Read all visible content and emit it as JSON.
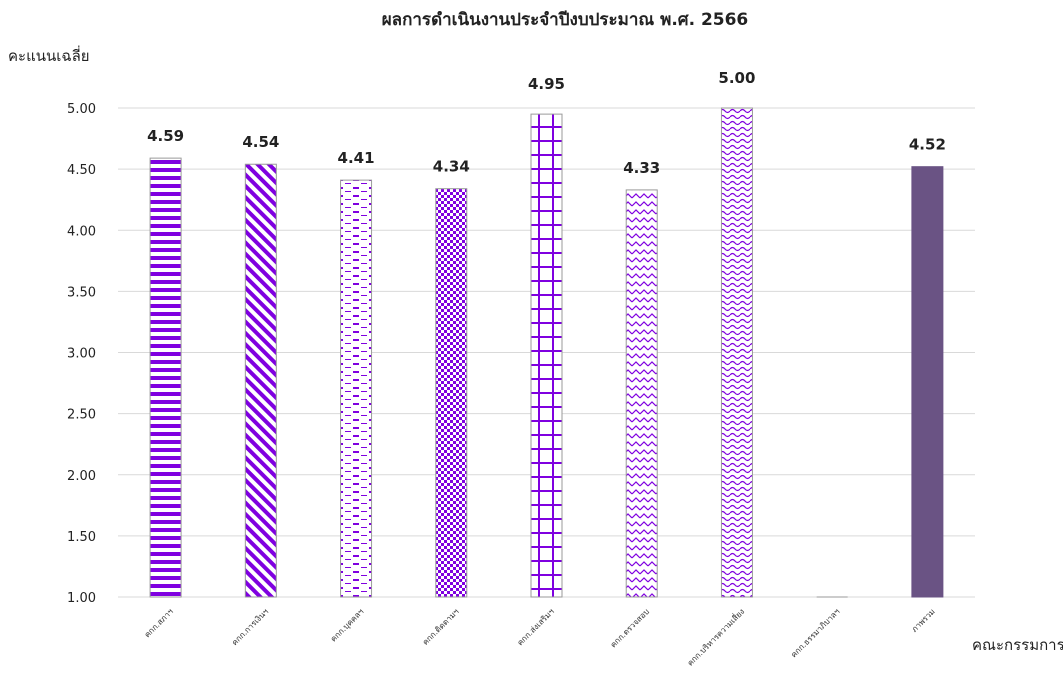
{
  "chart_data": {
    "type": "bar",
    "title": "ผลการดำเนินงานประจำปีงบประมาณ พ.ศ. 2566",
    "ylabel": "คะแนนเฉลี่ย",
    "xlabel": "คณะกรรมการ",
    "ylim": [
      1.0,
      5.0
    ],
    "yticks": [
      "1.00",
      "1.50",
      "2.00",
      "2.50",
      "3.00",
      "3.50",
      "4.00",
      "4.50",
      "5.00"
    ],
    "grid": true,
    "categories": [
      "คกก.สภาฯ",
      "คกก.การเงินฯ",
      "คกก.บุคคลฯ",
      "คกก.ติดตามฯ",
      "คกก.ส่งเสริมฯ",
      "คกก.ตรวจสอบ",
      "คกก.บริหารความเสี่ยง",
      "คกก.ธรรมาภิบาลฯ",
      "ภาพรวม"
    ],
    "values": [
      4.59,
      4.54,
      4.41,
      4.34,
      4.95,
      4.33,
      5.0,
      null,
      4.52
    ],
    "data_labels": [
      "4.59",
      "4.54",
      "4.41",
      "4.34",
      "4.95",
      "4.33",
      "5.00",
      "",
      "4.52"
    ],
    "patterns": [
      "horizontal-stripes",
      "diagonal-stripes",
      "dashes",
      "dots",
      "grid",
      "zigzag",
      "waves",
      "none",
      "solid"
    ],
    "colors": {
      "accent": "#7F00E0",
      "overall": "#6A5384",
      "grid": "#D9D9D9"
    }
  }
}
